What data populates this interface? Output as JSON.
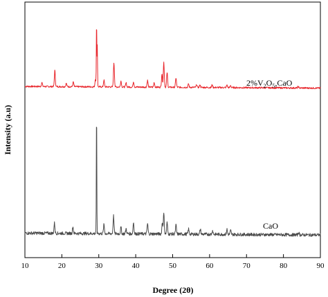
{
  "chart_data": {
    "type": "line",
    "title": "",
    "xlabel": "Degree (2θ)",
    "ylabel": "Intensity (a.u)",
    "xlim": [
      10,
      90
    ],
    "xticks": [
      10,
      20,
      30,
      40,
      50,
      60,
      70,
      80,
      90
    ],
    "y_tick_labels": false,
    "grid": false,
    "legend": "inline labels at right",
    "series": [
      {
        "name": "2%V2O5,CaO",
        "color": "#e8262c",
        "label_parts": [
          {
            "t": "2%V"
          },
          {
            "t": "2",
            "sub": true
          },
          {
            "t": "O"
          },
          {
            "t": "5",
            "sub": true
          },
          {
            "t": ",CaO"
          }
        ],
        "baseline": 0.05,
        "peaks": [
          {
            "x": 14.6,
            "h": 0.06
          },
          {
            "x": 18.1,
            "h": 0.24
          },
          {
            "x": 21.2,
            "h": 0.05
          },
          {
            "x": 23.1,
            "h": 0.07
          },
          {
            "x": 29.1,
            "h": 0.12
          },
          {
            "x": 29.4,
            "h": 1.0
          },
          {
            "x": 29.6,
            "h": 0.62
          },
          {
            "x": 31.4,
            "h": 0.1
          },
          {
            "x": 34.1,
            "h": 0.36
          },
          {
            "x": 36.0,
            "h": 0.09
          },
          {
            "x": 37.4,
            "h": 0.06
          },
          {
            "x": 39.4,
            "h": 0.08
          },
          {
            "x": 43.2,
            "h": 0.1
          },
          {
            "x": 45.0,
            "h": 0.07
          },
          {
            "x": 47.1,
            "h": 0.2
          },
          {
            "x": 47.6,
            "h": 0.37
          },
          {
            "x": 48.5,
            "h": 0.22
          },
          {
            "x": 50.9,
            "h": 0.14
          },
          {
            "x": 54.3,
            "h": 0.05
          },
          {
            "x": 56.5,
            "h": 0.04
          },
          {
            "x": 57.4,
            "h": 0.04
          },
          {
            "x": 60.7,
            "h": 0.04
          },
          {
            "x": 64.7,
            "h": 0.04
          },
          {
            "x": 65.7,
            "h": 0.03
          },
          {
            "x": 84.0,
            "h": 0.02
          }
        ]
      },
      {
        "name": "CaO",
        "color": "#4a4a4a",
        "label_parts": [
          {
            "t": "CaO"
          }
        ],
        "baseline": 0.03,
        "peaks": [
          {
            "x": 18.0,
            "h": 0.08
          },
          {
            "x": 23.0,
            "h": 0.05
          },
          {
            "x": 29.4,
            "h": 1.0
          },
          {
            "x": 31.4,
            "h": 0.07
          },
          {
            "x": 34.0,
            "h": 0.14
          },
          {
            "x": 36.0,
            "h": 0.05
          },
          {
            "x": 37.4,
            "h": 0.04
          },
          {
            "x": 39.4,
            "h": 0.09
          },
          {
            "x": 43.2,
            "h": 0.08
          },
          {
            "x": 47.2,
            "h": 0.09
          },
          {
            "x": 47.6,
            "h": 0.16
          },
          {
            "x": 48.5,
            "h": 0.09
          },
          {
            "x": 50.9,
            "h": 0.07
          },
          {
            "x": 54.3,
            "h": 0.04
          },
          {
            "x": 57.5,
            "h": 0.04
          },
          {
            "x": 60.8,
            "h": 0.03
          },
          {
            "x": 64.7,
            "h": 0.04
          },
          {
            "x": 65.7,
            "h": 0.03
          },
          {
            "x": 84.1,
            "h": 0.02
          }
        ]
      }
    ]
  }
}
